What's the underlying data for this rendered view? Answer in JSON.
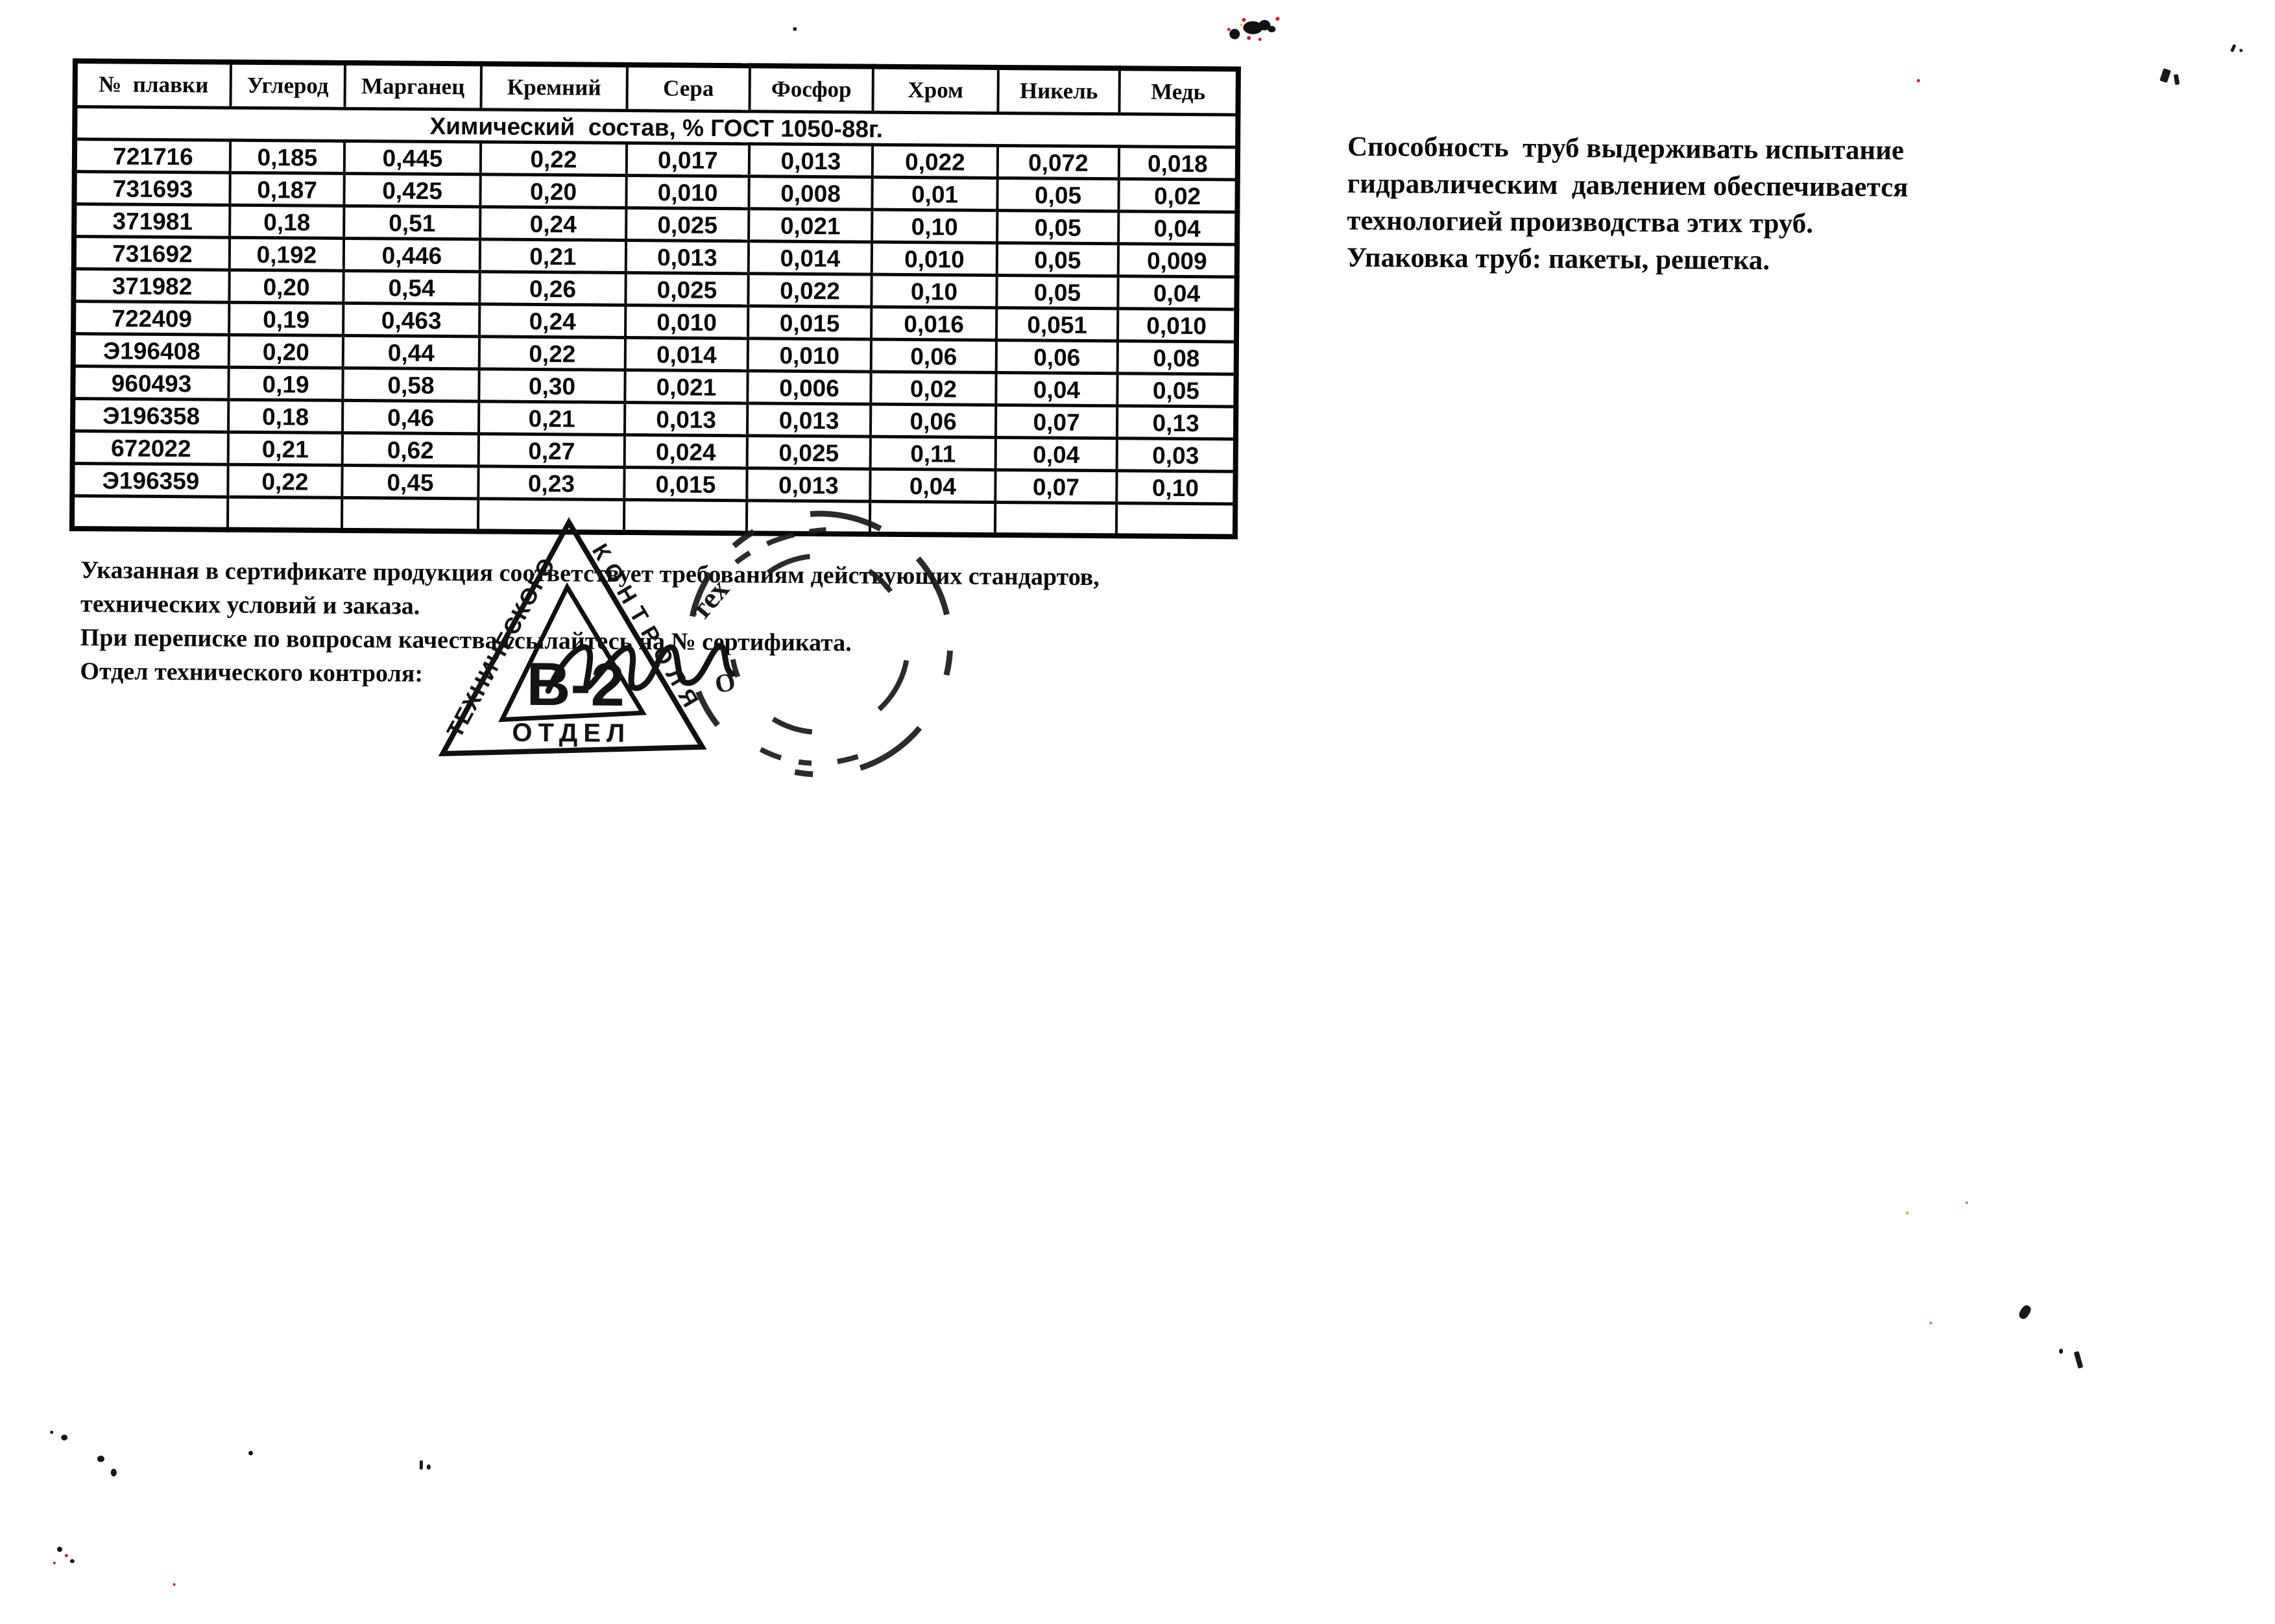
{
  "document": {
    "ink_color": "#0a0a0a",
    "table": {
      "title": "Химический  состав, % ГОСТ 1050-88г.",
      "columns": [
        "№  плавки",
        "Углерод",
        "Марганец",
        "Кремний",
        "Сера",
        "Фосфор",
        "Хром",
        "Никель",
        "Медь"
      ],
      "rows": [
        [
          "721716",
          "0,185",
          "0,445",
          "0,22",
          "0,017",
          "0,013",
          "0,022",
          "0,072",
          "0,018"
        ],
        [
          "731693",
          "0,187",
          "0,425",
          "0,20",
          "0,010",
          "0,008",
          "0,01",
          "0,05",
          "0,02"
        ],
        [
          "371981",
          "0,18",
          "0,51",
          "0,24",
          "0,025",
          "0,021",
          "0,10",
          "0,05",
          "0,04"
        ],
        [
          "731692",
          "0,192",
          "0,446",
          "0,21",
          "0,013",
          "0,014",
          "0,010",
          "0,05",
          "0,009"
        ],
        [
          "371982",
          "0,20",
          "0,54",
          "0,26",
          "0,025",
          "0,022",
          "0,10",
          "0,05",
          "0,04"
        ],
        [
          "722409",
          "0,19",
          "0,463",
          "0,24",
          "0,010",
          "0,015",
          "0,016",
          "0,051",
          "0,010"
        ],
        [
          "Э196408",
          "0,20",
          "0,44",
          "0,22",
          "0,014",
          "0,010",
          "0,06",
          "0,06",
          "0,08"
        ],
        [
          "960493",
          "0,19",
          "0,58",
          "0,30",
          "0,021",
          "0,006",
          "0,02",
          "0,04",
          "0,05"
        ],
        [
          "Э196358",
          "0,18",
          "0,46",
          "0,21",
          "0,013",
          "0,013",
          "0,06",
          "0,07",
          "0,13"
        ],
        [
          "672022",
          "0,21",
          "0,62",
          "0,27",
          "0,024",
          "0,025",
          "0,11",
          "0,04",
          "0,03"
        ],
        [
          "Э196359",
          "0,22",
          "0,45",
          "0,23",
          "0,015",
          "0,013",
          "0,04",
          "0,07",
          "0,10"
        ]
      ],
      "trailing_empty_row": true
    },
    "right_paragraph": {
      "lines": [
        "Способность  труб выдерживать испытание",
        "гидравлическим  давлением обеспечивается",
        "технологией производства этих труб.",
        "Упаковка труб: пакеты, решетка."
      ]
    },
    "notes": {
      "lines": [
        "Указанная в сертификате продукция соответствует требованиям действующих стандартов,",
        "технических условий и заказа.",
        "При переписке по вопросам качества ссылайтесь на № сертификата.",
        "Отдел технического контроля:"
      ]
    },
    "triangle_stamp": {
      "left_text": "ТЕХНИЧЕСКОГО",
      "right_text": "КОНТРОЛЯ",
      "bottom_text": "ОТДЕЛ",
      "center_text": "В-2"
    },
    "round_stamp": {
      "fragments": [
        "тех",
        "О"
      ]
    }
  }
}
